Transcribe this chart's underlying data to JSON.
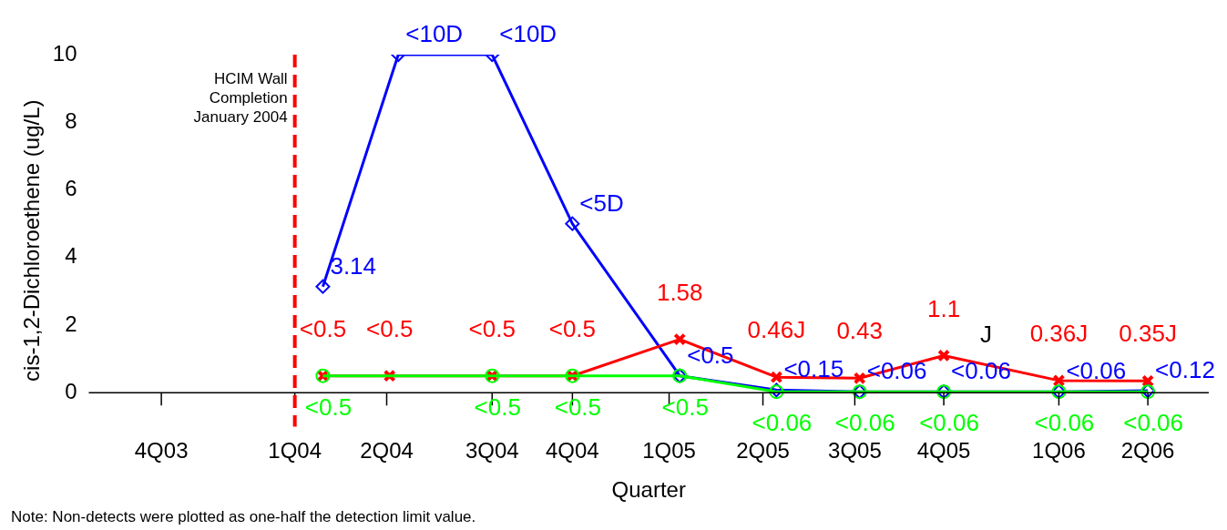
{
  "chart_data": {
    "type": "line",
    "xlabel": "Quarter",
    "ylabel": "cis-1,2-Dichloroethene (ug/L)",
    "xlim": [
      "2003-06-16",
      "2006-08-17"
    ],
    "xticks": [
      {
        "value": "2003-08-30",
        "label": "4Q03"
      },
      {
        "value": "2004-01-15",
        "label": "1Q04"
      },
      {
        "value": "2004-04-19",
        "label": "2Q04"
      },
      {
        "value": "2004-08-06",
        "label": "3Q04"
      },
      {
        "value": "2004-10-28",
        "label": "4Q04"
      },
      {
        "value": "2005-02-05",
        "label": "1Q05"
      },
      {
        "value": "2005-05-13",
        "label": "2Q05"
      },
      {
        "value": "2005-08-16",
        "label": "3Q05"
      },
      {
        "value": "2005-11-16",
        "label": "4Q05"
      },
      {
        "value": "2006-03-15",
        "label": "1Q06"
      },
      {
        "value": "2006-06-15",
        "label": "2Q06"
      }
    ],
    "ylim": [
      -1,
      10
    ],
    "yticks": [
      0,
      2,
      4,
      6,
      8,
      10
    ],
    "grid": false,
    "legend": false,
    "series": [
      {
        "color": "#0000ff",
        "marker": "diamond",
        "x": [
          "2004-02-13",
          "2004-05-01",
          "2004-08-06",
          "2004-10-28",
          "2005-02-16",
          "2005-05-27",
          "2005-08-21",
          "2005-11-16",
          "2006-03-15",
          "2006-06-15"
        ],
        "values": [
          3.14,
          10,
          10,
          5,
          0.5,
          0.08,
          0.03,
          0.03,
          0.03,
          0.06
        ],
        "value_labels": [
          "3.14",
          "<10D",
          "<10D",
          "<5D",
          "<0.5",
          "<0.15",
          "<0.06",
          "<0.06",
          "<0.06",
          "<0.12"
        ]
      },
      {
        "color": "#ff0000",
        "marker": "cross",
        "x": [
          "2004-02-13",
          "2004-04-22",
          "2004-08-06",
          "2004-10-28",
          "2005-02-16",
          "2005-05-27",
          "2005-08-21",
          "2005-11-16",
          "2006-03-15",
          "2006-06-15"
        ],
        "values": [
          0.5,
          0.5,
          0.5,
          0.5,
          1.58,
          0.46,
          0.43,
          1.1,
          0.36,
          0.35
        ],
        "value_labels": [
          "<0.5",
          "<0.5",
          "<0.5",
          "<0.5",
          "1.58",
          "0.46J",
          "0.43",
          "1.1",
          "0.36J",
          "0.35J"
        ]
      },
      {
        "color": "#00ff00",
        "marker": "circle",
        "x": [
          "2004-02-13",
          "2004-08-06",
          "2004-10-28",
          "2005-02-16",
          "2005-05-27",
          "2005-08-21",
          "2005-11-16",
          "2006-03-15",
          "2006-06-15"
        ],
        "values": [
          0.5,
          0.5,
          0.5,
          0.5,
          0.03,
          0.03,
          0.03,
          0.03,
          0.03
        ],
        "value_labels": [
          "<0.5",
          "<0.5",
          "<0.5",
          "<0.5",
          "<0.06",
          "<0.06",
          "<0.06",
          "<0.06",
          "<0.06"
        ]
      }
    ],
    "ref_lines": [
      {
        "axis": "x",
        "value": "2004-01-15",
        "label": "HCIM Wall\nCompletion\nJanuary 2004",
        "color": "#ff0000",
        "line_style": "dashed"
      }
    ],
    "annotations": [
      {
        "text": "J",
        "x": "2005-11-16",
        "y": 1.1
      },
      "Note: Non-detects were plotted as one-half the detection limit value."
    ]
  }
}
